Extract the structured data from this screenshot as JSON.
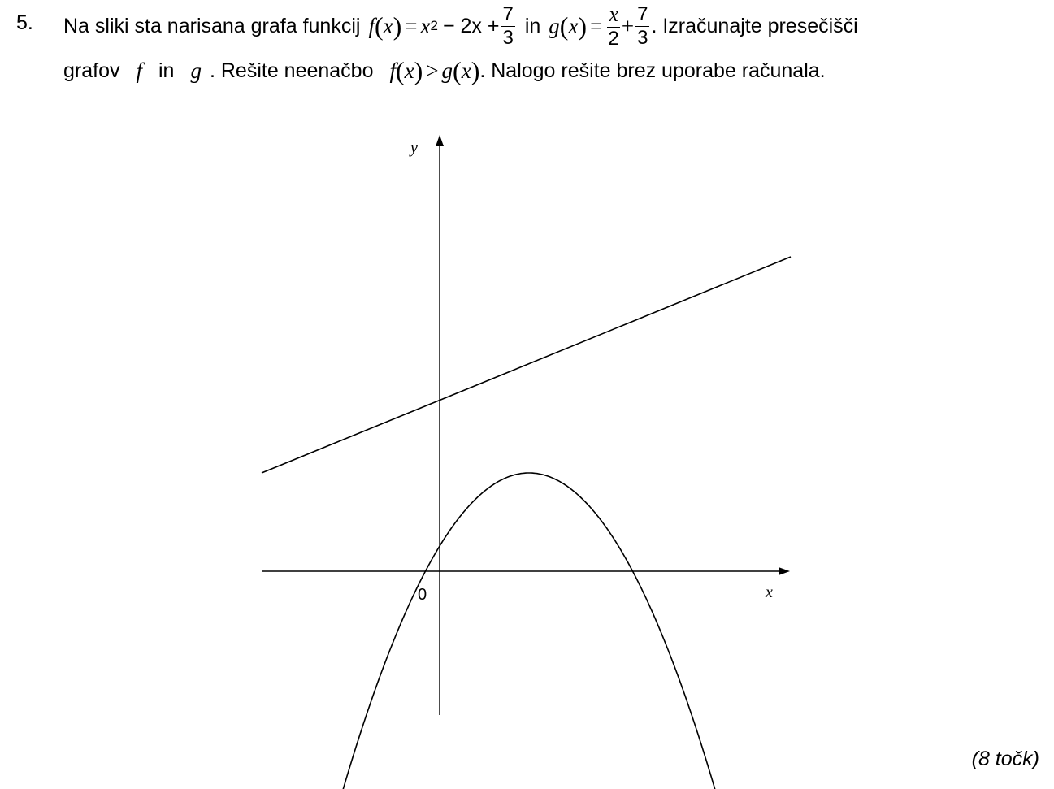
{
  "problem": {
    "number": "5.",
    "text1": "Na sliki sta narisana grafa funkcij",
    "f_name": "f",
    "x_var": "x",
    "eq": "=",
    "f_x2": "x",
    "f_exp": "2",
    "f_mid": "− 2x +",
    "frac_num": "7",
    "frac_den": "3",
    "in_word": "in",
    "g_name": "g",
    "g_frac_num": "x",
    "g_frac_den": "2",
    "plus": "+",
    "text2": ". Izračunajte presečišči",
    "line2_a": "grafov",
    "line2_f": "f",
    "line2_in": "in",
    "line2_g": "g",
    "line2_b": ". Rešite neenačbo",
    "gt": ">",
    "line2_c": ". Nalogo rešite brez uporabe računala."
  },
  "graph": {
    "y_label": "y",
    "x_label": "x",
    "origin_label": "0",
    "f_description": "parabola",
    "g_description": "line"
  },
  "points": "(8 točk)"
}
